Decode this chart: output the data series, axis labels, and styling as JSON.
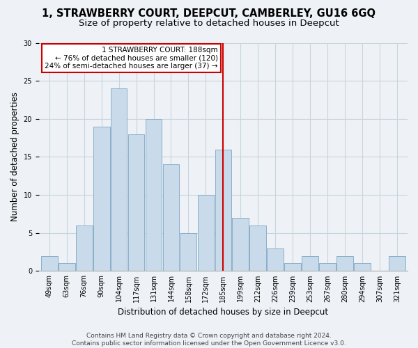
{
  "title_line1": "1, STRAWBERRY COURT, DEEPCUT, CAMBERLEY, GU16 6GQ",
  "title_line2": "Size of property relative to detached houses in Deepcut",
  "xlabel": "Distribution of detached houses by size in Deepcut",
  "ylabel": "Number of detached properties",
  "bar_color": "#c9daea",
  "bar_edge_color": "#8aafc8",
  "grid_color": "#c8d4de",
  "bg_color": "#eef2f6",
  "vline_color": "#cc0000",
  "vline_x_index": 10,
  "annotation_text": "1 STRAWBERRY COURT: 188sqm\n← 76% of detached houses are smaller (120)\n24% of semi-detached houses are larger (37) →",
  "annotation_box_color": "#ffffff",
  "annotation_box_edge": "#cc0000",
  "footer_line1": "Contains HM Land Registry data © Crown copyright and database right 2024.",
  "footer_line2": "Contains public sector information licensed under the Open Government Licence v3.0.",
  "categories": [
    "49sqm",
    "63sqm",
    "76sqm",
    "90sqm",
    "104sqm",
    "117sqm",
    "131sqm",
    "144sqm",
    "158sqm",
    "172sqm",
    "185sqm",
    "199sqm",
    "212sqm",
    "226sqm",
    "239sqm",
    "253sqm",
    "267sqm",
    "280sqm",
    "294sqm",
    "307sqm",
    "321sqm"
  ],
  "values": [
    2,
    1,
    6,
    19,
    24,
    18,
    20,
    14,
    5,
    10,
    16,
    7,
    6,
    3,
    1,
    2,
    1,
    2,
    1,
    0,
    2
  ],
  "ylim": [
    0,
    30
  ],
  "yticks": [
    0,
    5,
    10,
    15,
    20,
    25,
    30
  ],
  "title_fontsize": 10.5,
  "subtitle_fontsize": 9.5,
  "axis_label_fontsize": 8.5,
  "tick_fontsize": 7,
  "annotation_fontsize": 7.5,
  "footer_fontsize": 6.5
}
